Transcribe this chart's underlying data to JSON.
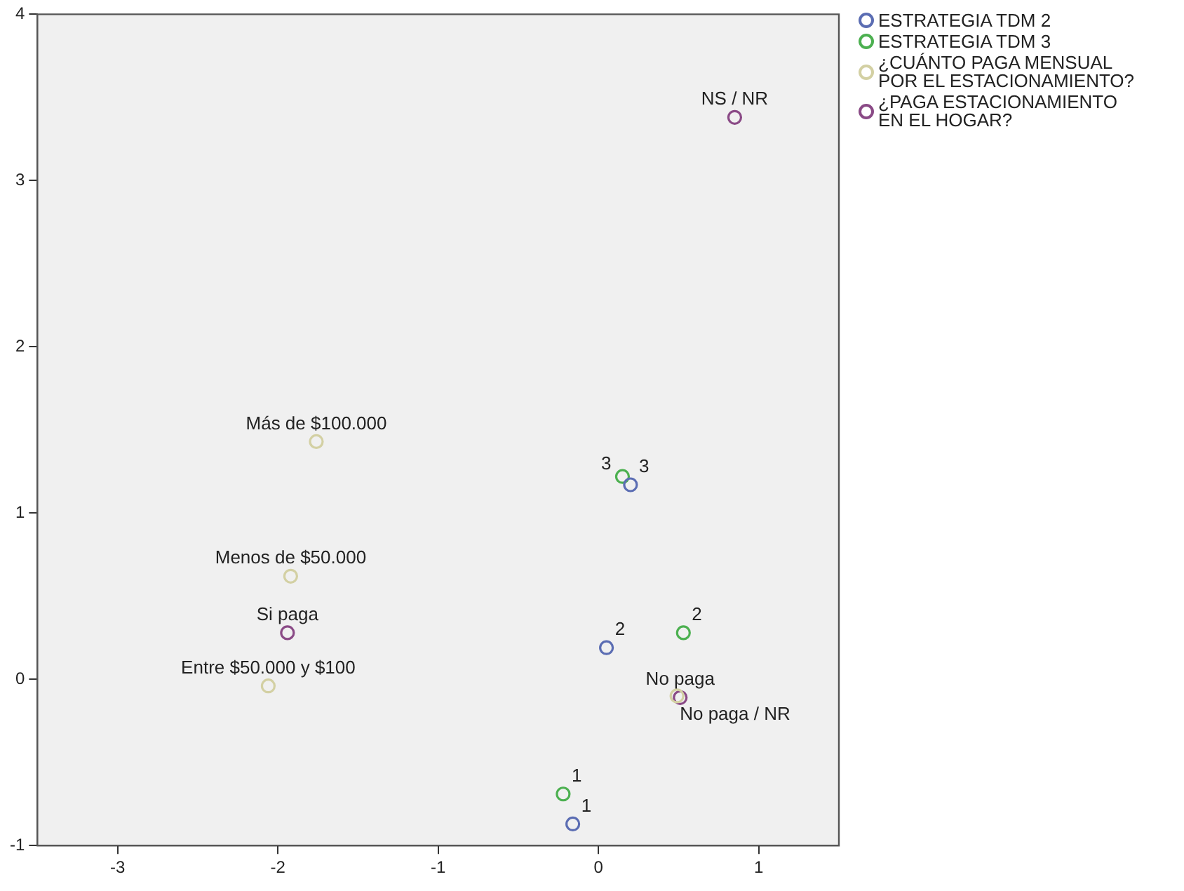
{
  "chart_data": {
    "type": "scatter",
    "xlim": [
      -3.5,
      1.5
    ],
    "xticks": [
      -3,
      -2,
      -1,
      0,
      1
    ],
    "ylim": [
      -1,
      4
    ],
    "yticks": [
      -1,
      0,
      1,
      2,
      3,
      4
    ],
    "grid": false,
    "legend": "right",
    "marker": "circle",
    "series": [
      {
        "name": "ESTRATEGIA TDM 2",
        "color": "#5b6db3",
        "x": [
          -0.16,
          0.05,
          0.2
        ],
        "values": [
          -0.87,
          0.19,
          1.17
        ]
      },
      {
        "name": "ESTRATEGIA TDM 3",
        "color": "#4cb050",
        "x": [
          -0.22,
          0.53,
          0.15
        ],
        "values": [
          -0.69,
          0.28,
          1.22
        ]
      },
      {
        "name": "¿CUÁNTO PAGA MENSUAL POR EL ESTACIONAMIENTO?",
        "color": "#d3d0a3",
        "x": [
          -1.76,
          -1.92,
          -2.06,
          0.49
        ],
        "values": [
          1.43,
          0.62,
          -0.04,
          -0.1
        ]
      },
      {
        "name": "¿PAGA ESTACIONAMIENTO EN EL HOGAR?",
        "color": "#8a4a86",
        "x": [
          0.85,
          -1.94,
          0.51
        ],
        "values": [
          3.38,
          0.28,
          -0.11
        ]
      }
    ],
    "annotations": [
      {
        "text": "1",
        "x": -0.16,
        "y": -0.87
      },
      {
        "text": "2",
        "x": 0.05,
        "y": 0.19
      },
      {
        "text": "3",
        "x": 0.2,
        "y": 1.17
      },
      {
        "text": "1",
        "x": -0.22,
        "y": -0.69
      },
      {
        "text": "2",
        "x": 0.53,
        "y": 0.28
      },
      {
        "text": "3",
        "x": 0.15,
        "y": 1.22
      },
      {
        "text": "NS / NR",
        "x": 0.85,
        "y": 3.38
      },
      {
        "text": "Si paga",
        "x": -1.94,
        "y": 0.28
      },
      {
        "text": "No paga",
        "x": 0.51,
        "y": -0.11
      },
      {
        "text": "Más de $100.000",
        "x": -1.76,
        "y": 1.43
      },
      {
        "text": "Menos de $50.000",
        "x": -1.92,
        "y": 0.62
      },
      {
        "text": "Entre $50.000 y $100",
        "x": -2.06,
        "y": -0.04
      },
      {
        "text": "No paga / NR",
        "x": 0.49,
        "y": -0.1
      }
    ]
  }
}
